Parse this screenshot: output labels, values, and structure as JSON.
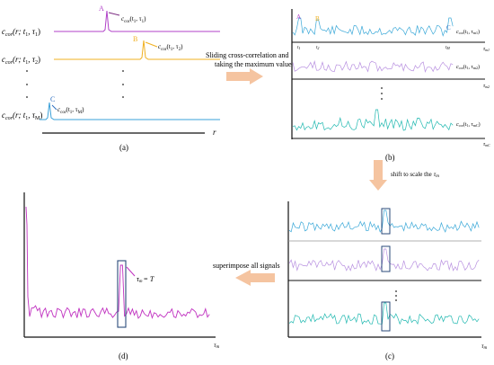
{
  "panel_a": {
    "rows": [
      {
        "label_main": "c",
        "label_sub": "cor",
        "label_args": "(r; t",
        "label_args_sub": "1",
        "label_args_end": ", τ",
        "label_tau_sub": "1",
        "label_close": ")",
        "peak_letter": "A",
        "callout_main": "c",
        "callout_sub": "cor",
        "callout_args": "(t",
        "callout_args_sub": "1",
        "callout_args_mid": ", τ",
        "callout_tau_sub": "1",
        "callout_close": ")",
        "color": "#b040c8"
      },
      {
        "label_main": "c",
        "label_sub": "cor",
        "label_args": "(r; t",
        "label_args_sub": "1",
        "label_args_end": ", τ",
        "label_tau_sub": "2",
        "label_close": ")",
        "peak_letter": "B",
        "callout_main": "c",
        "callout_sub": "cor",
        "callout_args": "(t",
        "callout_args_sub": "1",
        "callout_args_mid": ", τ",
        "callout_tau_sub": "2",
        "callout_close": ")",
        "color": "#f0b020"
      },
      {
        "label_main": "c",
        "label_sub": "cor",
        "label_args": "(r; t",
        "label_args_sub": "1",
        "label_args_end": ", τ",
        "label_tau_sub": "M",
        "label_close": ")",
        "peak_letter": "C",
        "callout_main": "c",
        "callout_sub": "cor",
        "callout_args": "(t",
        "callout_args_sub": "1",
        "callout_args_mid": ", τ",
        "callout_tau_sub": "M",
        "callout_close": ")",
        "color": "#2f6fc0"
      }
    ],
    "axis_label": "r",
    "caption": "(a)"
  },
  "arrow_ab_text_line1": "Sliding cross-correlation and",
  "arrow_ab_text_line2": "taking the maximum value",
  "panel_b": {
    "letters": [
      "A",
      "B",
      "C"
    ],
    "tick_labels": [
      "t",
      "t",
      "t"
    ],
    "tick_subs": [
      "1",
      "2",
      "M"
    ],
    "axis_labels": [
      {
        "main": "τ",
        "sub": "m1"
      },
      {
        "main": "τ",
        "sub": "m2"
      },
      {
        "main": "τ",
        "sub": "mC"
      }
    ],
    "series_labels": [
      {
        "main": "c",
        "sub": "cor",
        "args": "(t",
        "args_sub": "1",
        "mid": ", τ",
        "tau_sub": "m1",
        "close": ")"
      },
      {
        "main": "c",
        "sub": "cor",
        "args": "(t",
        "args_sub": "1",
        "mid": ", τ",
        "tau_sub": "m2",
        "close": ")"
      },
      {
        "main": "c",
        "sub": "cor",
        "args": "(t",
        "args_sub": "1",
        "mid": ", τ",
        "tau_sub": "mC",
        "close": ")"
      }
    ],
    "caption": "(b)",
    "colors": [
      "#3aa8d8",
      "#b890e0",
      "#20b8b0"
    ]
  },
  "arrow_bc_text": "shift to scale the",
  "arrow_bc_symbol": "τ",
  "arrow_bc_symbol_sub": "m",
  "panel_c": {
    "axis_label_main": "τ",
    "axis_label_sub": "m",
    "caption": "(c)",
    "colors": [
      "#3aa8d8",
      "#b890e0",
      "#20b8b0"
    ]
  },
  "arrow_cd_text": "superimpose all signals",
  "panel_d": {
    "annot_main": "τ",
    "annot_sub": "m",
    "annot_eq": "= T",
    "axis_label_main": "τ",
    "axis_label_sub": "m",
    "caption": "(d)",
    "color": "#c030c0"
  },
  "colors": {
    "arrow_fill": "#f5c4a0",
    "box_stroke": "#2a4a7a",
    "callout_a": "#7a2a80",
    "callout_c": "#2f6fc0",
    "callout_b": "#f0b020"
  }
}
